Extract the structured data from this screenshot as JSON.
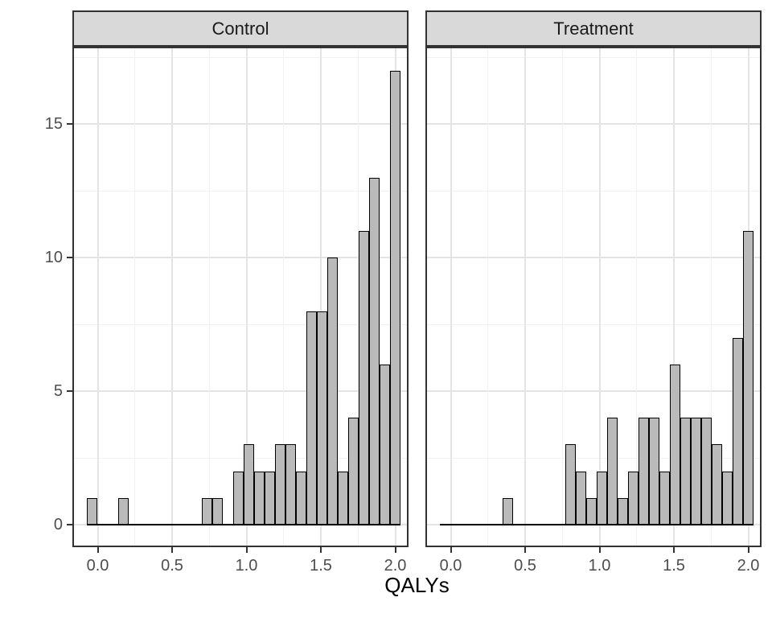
{
  "chart_data": {
    "type": "histogram",
    "title": "",
    "xlabel": "QALYs",
    "ylabel": "",
    "facet_variable_values": [
      "Control",
      "Treatment"
    ],
    "x_tick_labels": [
      "0.0",
      "0.5",
      "1.0",
      "1.5",
      "2.0"
    ],
    "x_tick_values": [
      0.0,
      0.5,
      1.0,
      1.5,
      2.0
    ],
    "y_tick_labels": [
      "0",
      "5",
      "10",
      "15"
    ],
    "y_tick_values": [
      0,
      5,
      10,
      15
    ],
    "ylim": [
      -0.9,
      17.9
    ],
    "xlim": [
      -0.17,
      2.09
    ],
    "grid": true,
    "legend_position": "none",
    "bin_start": -0.076,
    "bin_width": 0.0703,
    "n_bins": 30,
    "facets": [
      {
        "label": "Control",
        "counts": [
          1,
          0,
          0,
          1,
          0,
          0,
          0,
          0,
          0,
          0,
          0,
          1,
          1,
          0,
          2,
          3,
          2,
          2,
          3,
          3,
          2,
          8,
          8,
          10,
          2,
          4,
          11,
          13,
          6,
          17
        ]
      },
      {
        "label": "Treatment",
        "counts": [
          0,
          0,
          0,
          0,
          0,
          0,
          1,
          0,
          0,
          0,
          0,
          0,
          3,
          2,
          1,
          2,
          4,
          1,
          2,
          4,
          4,
          2,
          6,
          4,
          4,
          4,
          3,
          2,
          7,
          11
        ]
      }
    ],
    "style": {
      "bar_fill": "#bababa",
      "bar_border": "#000000",
      "strip_background": "#d9d9d9",
      "panel_border": "#333333",
      "major_grid": "#e4e4e4",
      "minor_grid": "#f1f1f1",
      "tick_label_color": "#4d4d4d",
      "axis_title_color": "#000000"
    }
  }
}
